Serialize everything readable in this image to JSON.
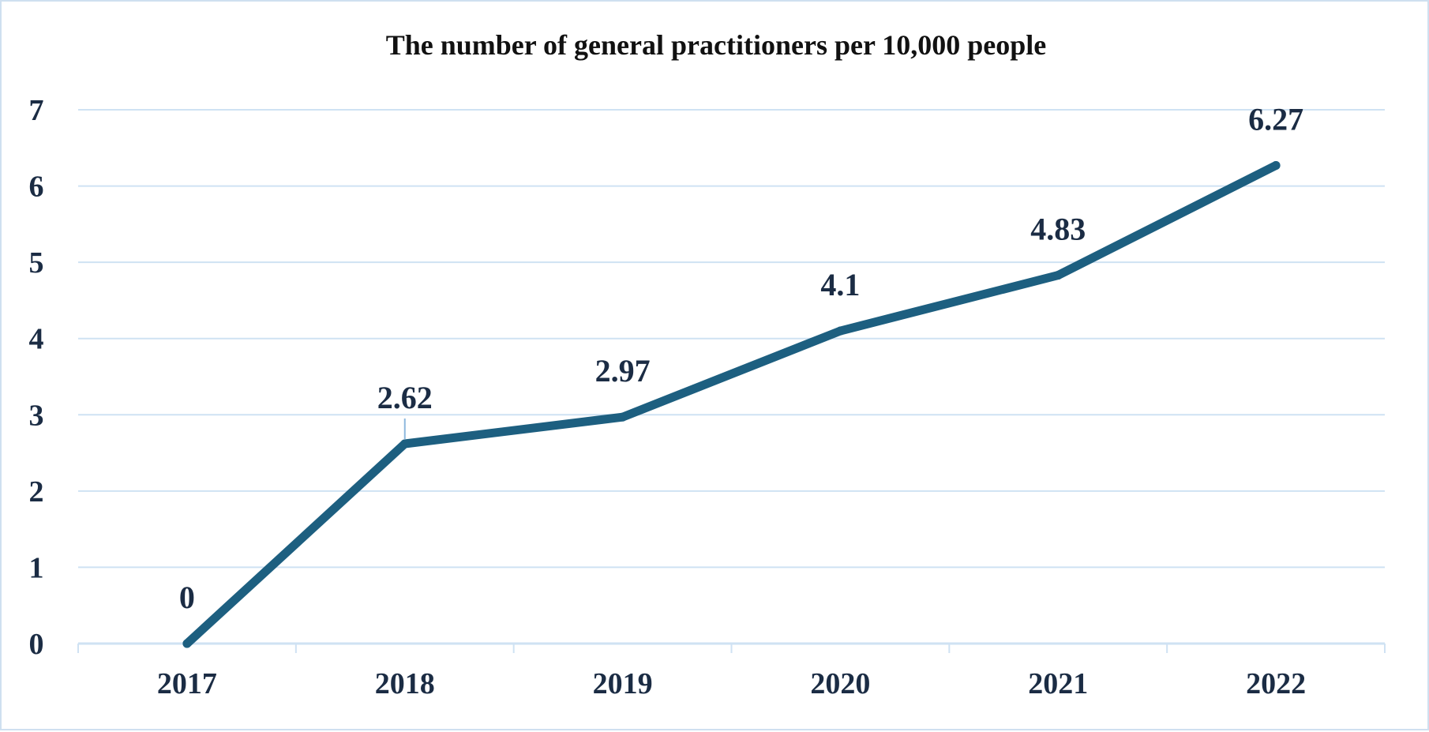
{
  "chart_data": {
    "type": "line",
    "title": "The number of general practitioners per 10,000 people",
    "xlabel": "",
    "ylabel": "",
    "categories": [
      "2017",
      "2018",
      "2019",
      "2020",
      "2021",
      "2022"
    ],
    "values": [
      0,
      2.62,
      2.97,
      4.1,
      4.83,
      6.27
    ],
    "data_labels": [
      "0",
      "2.62",
      "2.97",
      "4.1",
      "4.83",
      "6.27"
    ],
    "yticks": [
      "0",
      "1",
      "2",
      "3",
      "4",
      "5",
      "6",
      "7"
    ],
    "ylim": [
      0,
      7
    ],
    "grid": true,
    "legend": "none",
    "colors": {
      "line": "#1d5f80",
      "grid": "#cfe2f3",
      "text": "#1b2c44",
      "frame": "#cfe0f0"
    }
  }
}
